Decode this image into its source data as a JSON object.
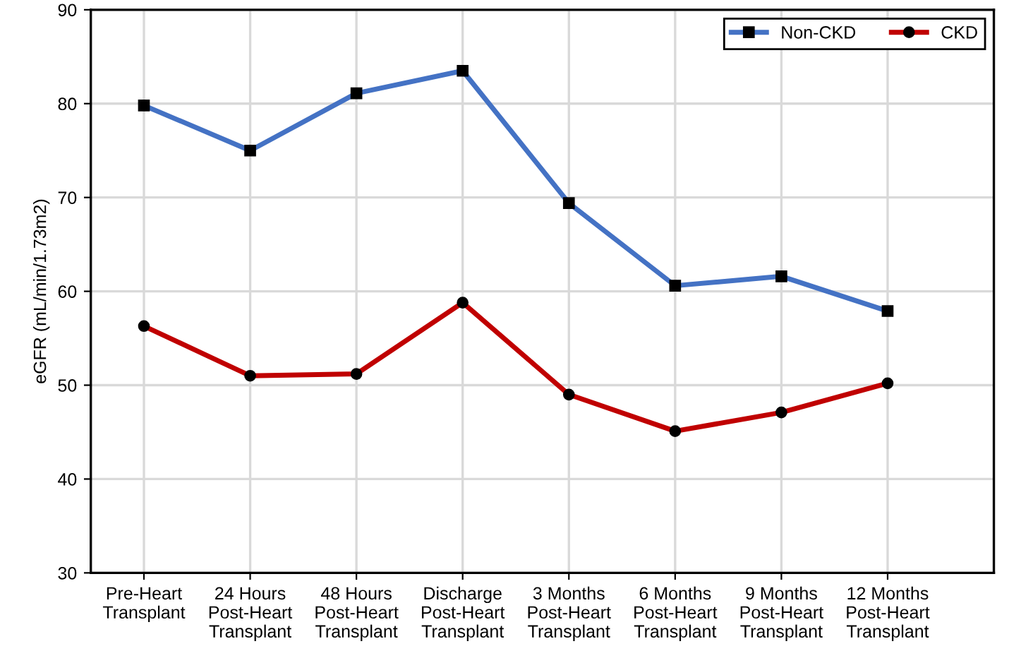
{
  "chart_data": {
    "type": "line",
    "ylabel": "eGFR (mL/min/1.73m2)",
    "categories": [
      "Pre-Heart\nTransplant",
      "24 Hours\nPost-Heart\nTransplant",
      "48 Hours\nPost-Heart\nTransplant",
      "Discharge\nPost-Heart\nTransplant",
      "3 Months\nPost-Heart\nTransplant",
      "6 Months\nPost-Heart\nTransplant",
      "9 Months\nPost-Heart\nTransplant",
      "12 Months\nPost-Heart\nTransplant"
    ],
    "series": [
      {
        "name": "Non-CKD",
        "color": "#4472c4",
        "marker": "square",
        "values": [
          79.8,
          75.0,
          81.1,
          83.5,
          69.4,
          60.6,
          61.6,
          57.9
        ]
      },
      {
        "name": "CKD",
        "color": "#c00000",
        "marker": "circle",
        "values": [
          56.3,
          51.0,
          51.2,
          58.8,
          49.0,
          45.1,
          47.1,
          50.2
        ]
      }
    ],
    "ylim": [
      30,
      90
    ],
    "yticks": [
      30,
      40,
      50,
      60,
      70,
      80,
      90
    ],
    "grid": true,
    "legend": "top right",
    "line_style": "solid"
  }
}
